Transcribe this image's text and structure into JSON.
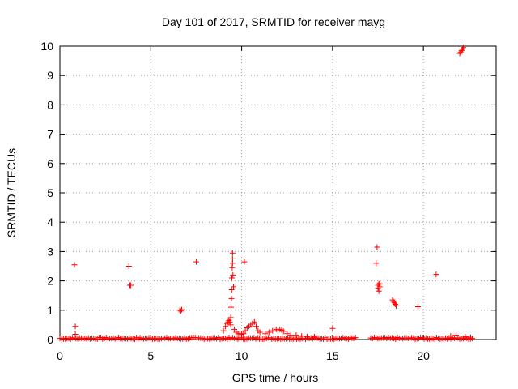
{
  "chart_data": {
    "type": "scatter",
    "title": "Day 101 of 2017, SRMTID for receiver mayg",
    "xlabel": "GPS time / hours",
    "ylabel": "SRMTID / TECUs",
    "xlim": [
      0,
      24
    ],
    "ylim": [
      0,
      10
    ],
    "xticks": [
      0,
      5,
      10,
      15,
      20
    ],
    "yticks": [
      0,
      1,
      2,
      3,
      4,
      5,
      6,
      7,
      8,
      9,
      10
    ],
    "grid": true,
    "marker": "+",
    "color": "#ff0000",
    "baseline_segments": [
      {
        "start": 0.0,
        "end": 16.3,
        "level": 0.04
      },
      {
        "start": 17.1,
        "end": 22.7,
        "level": 0.04
      }
    ],
    "series": [
      {
        "name": "SRMTID",
        "x": [
          0.8,
          0.85,
          0.85,
          3.8,
          3.85,
          3.9,
          6.6,
          6.65,
          6.7,
          7.5,
          9.0,
          9.1,
          9.2,
          9.25,
          9.3,
          9.35,
          9.4,
          9.4,
          9.42,
          9.44,
          9.45,
          9.46,
          9.48,
          9.5,
          9.5,
          9.5,
          9.52,
          9.55,
          9.6,
          9.7,
          9.8,
          9.9,
          10.0,
          10.1,
          10.2,
          10.3,
          10.4,
          10.5,
          10.6,
          10.7,
          10.8,
          10.9,
          11.0,
          11.3,
          11.5,
          11.7,
          11.9,
          12.0,
          12.1,
          12.2,
          12.3,
          12.5,
          12.7,
          13.0,
          13.3,
          13.6,
          14.0,
          10.15,
          15.0,
          17.4,
          17.45,
          17.5,
          17.5,
          17.55,
          17.55,
          17.6,
          17.6,
          18.3,
          18.35,
          18.4,
          18.45,
          18.5,
          19.7,
          20.7,
          22.0,
          22.05,
          22.1,
          22.15,
          22.2,
          21.5,
          21.8,
          22.3,
          22.6
        ],
        "y": [
          2.55,
          0.45,
          0.18,
          2.5,
          1.85,
          1.85,
          1.0,
          0.97,
          1.02,
          2.65,
          0.3,
          0.45,
          0.55,
          0.6,
          0.65,
          0.6,
          0.5,
          0.75,
          1.1,
          1.4,
          1.7,
          2.1,
          2.45,
          2.6,
          2.75,
          2.95,
          2.2,
          1.8,
          0.35,
          0.25,
          0.2,
          0.2,
          0.18,
          0.2,
          0.3,
          0.4,
          0.45,
          0.5,
          0.55,
          0.6,
          0.45,
          0.3,
          0.25,
          0.2,
          0.25,
          0.3,
          0.35,
          0.3,
          0.35,
          0.32,
          0.28,
          0.2,
          0.15,
          0.15,
          0.12,
          0.1,
          0.1,
          2.65,
          0.38,
          2.6,
          3.15,
          1.85,
          1.75,
          1.9,
          1.65,
          1.8,
          1.9,
          1.35,
          1.3,
          1.25,
          1.2,
          1.15,
          1.12,
          2.22,
          9.75,
          9.8,
          9.85,
          9.9,
          9.95,
          0.12,
          0.15,
          0.1,
          0.08
        ]
      }
    ]
  }
}
